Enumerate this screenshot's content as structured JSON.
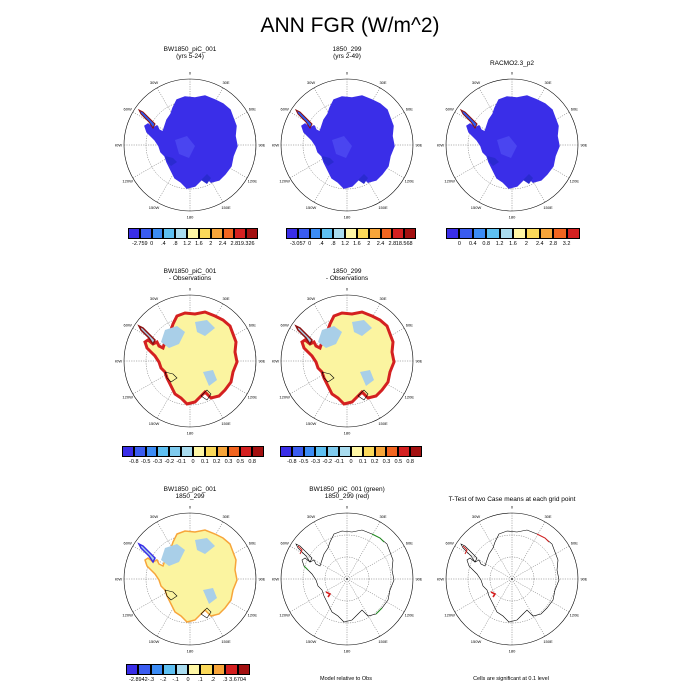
{
  "title": "ANN FGR (W/m^2)",
  "colors": {
    "ice_blue": "#3a2ee8",
    "ice_light_blue": "#2b5bf0",
    "obs_yellow": "#fbf4a0",
    "obs_light_blue": "#a9cfe8",
    "coast_red": "#d42020",
    "dark_red": "#8b1010",
    "line_green": "#1f8a1f"
  },
  "panels": [
    {
      "title": "BW1850_piC_001",
      "subtitle": "(yrs 5-24)",
      "kind": "field"
    },
    {
      "title": "1850_299",
      "subtitle": "(yrs 2-49)",
      "kind": "field"
    },
    {
      "title": "RACMO2.3_p2",
      "subtitle": "",
      "kind": "field"
    },
    {
      "title": "BW1850_piC_001",
      "subtitle": "- Observations",
      "kind": "diff"
    },
    {
      "title": "1850_299",
      "subtitle": "- Observations",
      "kind": "diff"
    },
    {
      "title": "BW1850_piC_001",
      "subtitle": "1850_299",
      "kind": "diff2"
    },
    {
      "title": "BW1850_piC_001 (green)",
      "subtitle": "1850_299 (red)",
      "kind": "outline"
    },
    {
      "title": "T-Test of two Case means at each grid point",
      "subtitle": "",
      "kind": "ttest"
    }
  ],
  "map_labels": {
    "lat_labels": [
      "0",
      "30E",
      "60E",
      "90E",
      "120E",
      "150E",
      "180",
      "150W",
      "120W",
      "90W",
      "60W",
      "30W"
    ]
  },
  "colorbars": [
    {
      "labels": [
        "-2.759",
        "0",
        ".4",
        ".8",
        "1.2",
        "1.6",
        "2",
        "2.4",
        "2.8",
        "19.326"
      ],
      "colors": [
        "#3a2ee8",
        "#3a5cf0",
        "#3c8cf5",
        "#5ec0f2",
        "#a9dcef",
        "#fff7a5",
        "#fbd95a",
        "#f7a53a",
        "#f26520",
        "#d42020",
        "#a31010"
      ]
    },
    {
      "labels": [
        "-3.057",
        "0",
        ".4",
        ".8",
        "1.2",
        "1.6",
        "2",
        "2.4",
        "2.8",
        "18.568"
      ],
      "colors": [
        "#3a2ee8",
        "#3a5cf0",
        "#3c8cf5",
        "#5ec0f2",
        "#a9dcef",
        "#fff7a5",
        "#fbd95a",
        "#f7a53a",
        "#f26520",
        "#d42020",
        "#a31010"
      ]
    },
    {
      "labels": [
        "0",
        "0.4",
        "0.8",
        "1.2",
        "1.6",
        "2",
        "2.4",
        "2.8",
        "3.2"
      ],
      "colors": [
        "#3a2ee8",
        "#3a5cf0",
        "#3c8cf5",
        "#5ec0f2",
        "#a9dcef",
        "#fff7a5",
        "#fbd95a",
        "#f7a53a",
        "#f26520",
        "#d42020"
      ]
    },
    {
      "labels": [
        "-0.8",
        "-0.5",
        "-0.3",
        "-0.2",
        "-0.1",
        "0",
        "0.1",
        "0.2",
        "0.3",
        "0.5",
        "0.8"
      ],
      "colors": [
        "#3a2ee8",
        "#3a5cf0",
        "#3c8cf5",
        "#5ec0f2",
        "#7fcbee",
        "#a9dcef",
        "#fff7a5",
        "#fbd95a",
        "#f7a53a",
        "#f26520",
        "#d42020",
        "#a31010"
      ]
    },
    {
      "labels": [
        "-0.8",
        "-0.5",
        "-0.3",
        "-0.2",
        "-0.1",
        "0",
        "0.1",
        "0.2",
        "0.3",
        "0.5",
        "0.8"
      ],
      "colors": [
        "#3a2ee8",
        "#3a5cf0",
        "#3c8cf5",
        "#5ec0f2",
        "#7fcbee",
        "#a9dcef",
        "#fff7a5",
        "#fbd95a",
        "#f7a53a",
        "#f26520",
        "#d42020",
        "#a31010"
      ]
    },
    {
      "labels": [
        "-2.8942",
        "-.3",
        "-.2",
        "-.1",
        "0",
        ".1",
        ".2",
        ".3",
        "3.6704"
      ],
      "colors": [
        "#3a2ee8",
        "#3a5cf0",
        "#3c8cf5",
        "#5ec0f2",
        "#a9dcef",
        "#fff7a5",
        "#fbd95a",
        "#f7a53a",
        "#d42020",
        "#a31010"
      ]
    }
  ],
  "notes": {
    "outline_note": "Model relative to Obs",
    "ttest_note": "Cells are significant at 0.1 level"
  },
  "chart_data": {
    "type": "heatmap",
    "title": "ANN FGR (W/m^2)",
    "projection": "south polar stereographic",
    "panels": [
      {
        "title": "BW1850_piC_001 (yrs 5-24)",
        "min": -2.759,
        "max": 19.326
      },
      {
        "title": "1850_299 (yrs 2-49)",
        "min": -3.057,
        "max": 18.568
      },
      {
        "title": "RACMO2.3_p2",
        "range": [
          0,
          3.2
        ]
      },
      {
        "title": "BW1850_piC_001 - Observations",
        "levels": [
          -0.8,
          -0.5,
          -0.3,
          -0.2,
          -0.1,
          0,
          0.1,
          0.2,
          0.3,
          0.5,
          0.8
        ]
      },
      {
        "title": "1850_299 - Observations",
        "levels": [
          -0.8,
          -0.5,
          -0.3,
          -0.2,
          -0.1,
          0,
          0.1,
          0.2,
          0.3,
          0.5,
          0.8
        ]
      },
      {
        "title": "BW1850_piC_001 - 1850_299",
        "min": -2.8942,
        "max": 3.6704
      },
      {
        "title": "BW1850_piC_001 (green) 1850_299 (red)",
        "note": "Model relative to Obs"
      },
      {
        "title": "T-Test of two Case means at each grid point",
        "note": "Cells are significant at 0.1 level"
      }
    ]
  }
}
